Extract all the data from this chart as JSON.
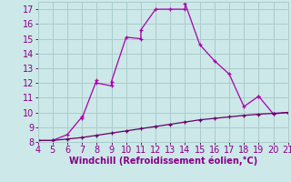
{
  "xlabel": "Windchill (Refroidissement éolien,°C)",
  "xlim": [
    4,
    21
  ],
  "ylim": [
    8,
    17.5
  ],
  "xticks": [
    4,
    5,
    6,
    7,
    8,
    9,
    10,
    11,
    12,
    13,
    14,
    15,
    16,
    17,
    18,
    19,
    20,
    21
  ],
  "yticks": [
    8,
    9,
    10,
    11,
    12,
    13,
    14,
    15,
    16,
    17
  ],
  "background_color": "#cce8e8",
  "grid_color": "#aacccc",
  "line_color": "#aa00aa",
  "line_color2": "#660066",
  "curve1_x": [
    4,
    5,
    6,
    7,
    7,
    8,
    8,
    9,
    9,
    10,
    11,
    11,
    12,
    13,
    14,
    14,
    15,
    16,
    17,
    18,
    19,
    19,
    20,
    21
  ],
  "curve1_y": [
    8.1,
    8.1,
    8.5,
    9.7,
    9.6,
    12.2,
    12.0,
    11.8,
    12.1,
    15.1,
    15.0,
    15.6,
    17.0,
    17.0,
    17.0,
    17.4,
    14.6,
    13.5,
    12.6,
    10.4,
    11.1,
    11.1,
    9.9,
    10.0
  ],
  "curve2_x": [
    4,
    5,
    6,
    7,
    8,
    9,
    10,
    11,
    12,
    13,
    14,
    15,
    16,
    17,
    18,
    19,
    20,
    21
  ],
  "curve2_y": [
    8.1,
    8.1,
    8.2,
    8.3,
    8.45,
    8.6,
    8.75,
    8.9,
    9.05,
    9.2,
    9.35,
    9.5,
    9.6,
    9.7,
    9.8,
    9.88,
    9.94,
    10.0
  ],
  "marker": "+",
  "markersize": 3,
  "linewidth": 0.9,
  "font_color": "#880088",
  "xlabel_fontsize": 7,
  "tick_fontsize": 7
}
